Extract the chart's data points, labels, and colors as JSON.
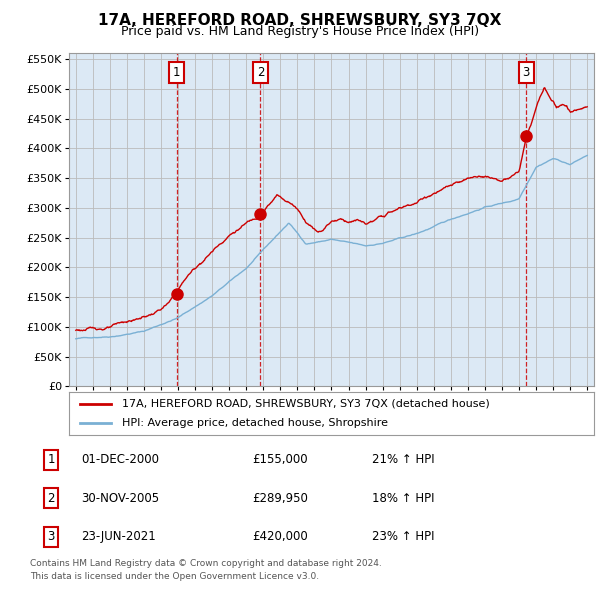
{
  "title": "17A, HEREFORD ROAD, SHREWSBURY, SY3 7QX",
  "subtitle": "Price paid vs. HM Land Registry's House Price Index (HPI)",
  "legend_line1": "17A, HEREFORD ROAD, SHREWSBURY, SY3 7QX (detached house)",
  "legend_line2": "HPI: Average price, detached house, Shropshire",
  "footer_line1": "Contains HM Land Registry data © Crown copyright and database right 2024.",
  "footer_line2": "This data is licensed under the Open Government Licence v3.0.",
  "transactions": [
    {
      "num": 1,
      "date": "2000-12-01",
      "label": "01-DEC-2000",
      "price": 155000,
      "pct": "21%",
      "dir": "↑"
    },
    {
      "num": 2,
      "date": "2005-11-30",
      "label": "30-NOV-2005",
      "price": 289950,
      "pct": "18%",
      "dir": "↑"
    },
    {
      "num": 3,
      "date": "2021-06-23",
      "label": "23-JUN-2021",
      "price": 420000,
      "pct": "23%",
      "dir": "↑"
    }
  ],
  "ylim": [
    0,
    575000
  ],
  "yticks": [
    0,
    50000,
    100000,
    150000,
    200000,
    250000,
    300000,
    350000,
    400000,
    450000,
    500000,
    550000
  ],
  "price_color": "#cc0000",
  "hpi_color": "#7ab0d4",
  "vline_color": "#cc0000",
  "marker_color": "#cc0000",
  "bg_color": "#dce9f5",
  "plot_bg": "#ffffff",
  "grid_color": "#bbbbbb"
}
